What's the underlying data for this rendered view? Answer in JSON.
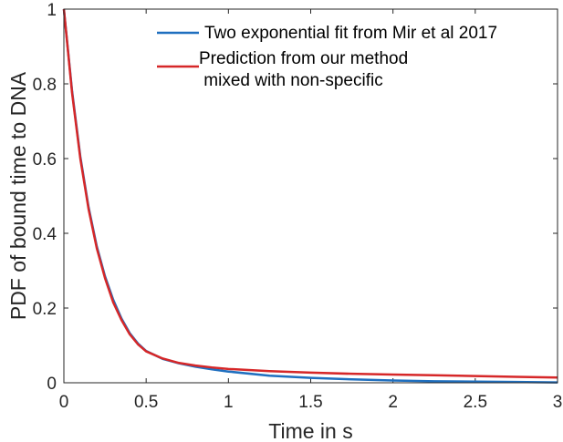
{
  "chart_data": {
    "type": "line",
    "xlabel": "Time in s",
    "ylabel": "PDF of bound time to DNA",
    "xlim": [
      0,
      3
    ],
    "ylim": [
      0,
      1
    ],
    "xticks": [
      "0",
      "0.5",
      "1",
      "1.5",
      "2",
      "2.5",
      "3"
    ],
    "yticks": [
      "0",
      "0.2",
      "0.4",
      "0.6",
      "0.8",
      "1"
    ],
    "grid": false,
    "legend_position": "top-right",
    "series": [
      {
        "name": "Two exponential fit from Mir et al 2017",
        "color": "#1f6fbf",
        "x": [
          0,
          0.05,
          0.1,
          0.15,
          0.2,
          0.25,
          0.3,
          0.35,
          0.4,
          0.45,
          0.5,
          0.6,
          0.7,
          0.8,
          0.9,
          1.0,
          1.25,
          1.5,
          1.75,
          2.0,
          2.25,
          2.5,
          2.75,
          3.0
        ],
        "y": [
          1.0,
          0.78,
          0.605,
          0.47,
          0.365,
          0.285,
          0.222,
          0.172,
          0.133,
          0.105,
          0.085,
          0.064,
          0.052,
          0.043,
          0.036,
          0.03,
          0.019,
          0.013,
          0.009,
          0.006,
          0.004,
          0.003,
          0.002,
          0.001
        ]
      },
      {
        "name": "Prediction from our method\n mixed with non-specific",
        "color": "#d62728",
        "x": [
          0,
          0.05,
          0.1,
          0.15,
          0.2,
          0.25,
          0.3,
          0.35,
          0.4,
          0.45,
          0.5,
          0.6,
          0.7,
          0.8,
          0.9,
          1.0,
          1.25,
          1.5,
          1.75,
          2.0,
          2.25,
          2.5,
          2.75,
          3.0
        ],
        "y": [
          1.0,
          0.775,
          0.6,
          0.465,
          0.36,
          0.28,
          0.215,
          0.168,
          0.13,
          0.103,
          0.084,
          0.065,
          0.053,
          0.046,
          0.041,
          0.037,
          0.031,
          0.027,
          0.024,
          0.022,
          0.02,
          0.018,
          0.016,
          0.014
        ]
      }
    ]
  }
}
